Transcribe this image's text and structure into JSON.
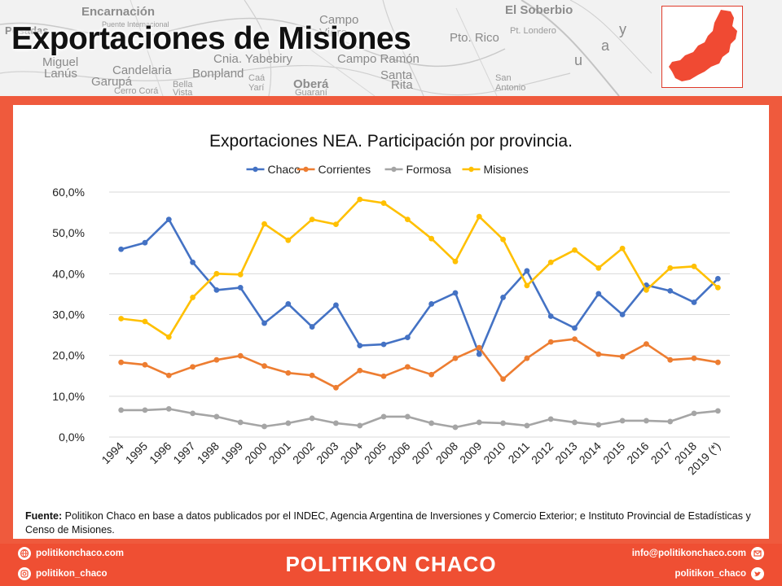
{
  "header": {
    "title": "Exportaciones de Misiones",
    "map_labels": [
      "Encarnación",
      "Puente Internacional",
      "Posadas",
      "Miguel",
      "Lanús",
      "Garupá",
      "Candelaria",
      "Cerro Corá",
      "Campo",
      "Viera",
      "Pto. Rico",
      "Cnia. Yabebiry",
      "Bonpland",
      "Bella",
      "Vista",
      "Caá",
      "Yarí",
      "Campo Ramón",
      "Oberá",
      "Guaraní",
      "Santa",
      "Rita",
      "El Soberbio",
      "Pt. Londero",
      "San",
      "Antonio",
      "u",
      "a",
      "y"
    ],
    "accent_color": "#ef5a3d",
    "province_color": "#f04a33"
  },
  "chart_data": {
    "type": "line",
    "title": "Exportaciones NEA. Participación por provincia.",
    "xlabel": "",
    "ylabel": "",
    "categories": [
      "1994",
      "1995",
      "1996",
      "1997",
      "1998",
      "1999",
      "2000",
      "2001",
      "2002",
      "2003",
      "2004",
      "2005",
      "2006",
      "2007",
      "2008",
      "2009",
      "2010",
      "2011",
      "2012",
      "2013",
      "2014",
      "2015",
      "2016",
      "2017",
      "2018",
      "2019 (*)"
    ],
    "ylim": [
      0,
      60
    ],
    "yticks": [
      "0,0%",
      "10,0%",
      "20,0%",
      "30,0%",
      "40,0%",
      "50,0%",
      "60,0%"
    ],
    "grid": true,
    "legend_position": "top",
    "series": [
      {
        "name": "Chaco",
        "color": "#4472c4",
        "values": [
          46.0,
          47.6,
          53.3,
          42.8,
          36.0,
          36.6,
          27.9,
          32.6,
          27.0,
          32.3,
          22.4,
          22.7,
          24.4,
          32.6,
          35.3,
          20.3,
          34.2,
          40.7,
          29.6,
          26.7,
          35.1,
          30.0,
          37.2,
          35.8,
          33.0,
          38.8
        ]
      },
      {
        "name": "Corrientes",
        "color": "#ed7d31",
        "values": [
          18.3,
          17.7,
          15.1,
          17.2,
          18.9,
          19.9,
          17.4,
          15.7,
          15.1,
          12.1,
          16.3,
          14.9,
          17.2,
          15.3,
          19.3,
          21.9,
          14.2,
          19.3,
          23.3,
          24.0,
          20.3,
          19.7,
          22.8,
          18.9,
          19.3,
          18.3
        ]
      },
      {
        "name": "Formosa",
        "color": "#a5a5a5",
        "values": [
          6.6,
          6.6,
          6.9,
          5.8,
          5.0,
          3.6,
          2.6,
          3.4,
          4.6,
          3.4,
          2.8,
          5.0,
          5.0,
          3.4,
          2.4,
          3.6,
          3.4,
          2.8,
          4.4,
          3.6,
          3.0,
          4.0,
          4.0,
          3.8,
          5.8,
          6.4
        ]
      },
      {
        "name": "Misiones",
        "color": "#ffc000",
        "values": [
          29.0,
          28.3,
          24.5,
          34.2,
          40.0,
          39.8,
          52.2,
          48.2,
          53.3,
          52.1,
          58.2,
          57.3,
          53.3,
          48.6,
          43.0,
          54.0,
          48.4,
          37.1,
          42.8,
          45.8,
          41.4,
          46.2,
          36.0,
          41.4,
          41.8,
          36.6
        ]
      }
    ]
  },
  "source": {
    "label": "Fuente:",
    "text": " Politikon Chaco en base a datos publicados por el INDEC, Agencia Argentina de Inversiones y Comercio Exterior; e Instituto Provincial de Estadísticas y Censo de Misiones."
  },
  "footer": {
    "brand": "POLITIKON CHACO",
    "website": "politikonchaco.com",
    "instagram": "politikon_chaco",
    "email": "info@politikonchaco.com",
    "twitter": "politikon_chaco",
    "icons": [
      "globe-icon",
      "instagram-icon",
      "mail-icon",
      "twitter-icon"
    ]
  }
}
